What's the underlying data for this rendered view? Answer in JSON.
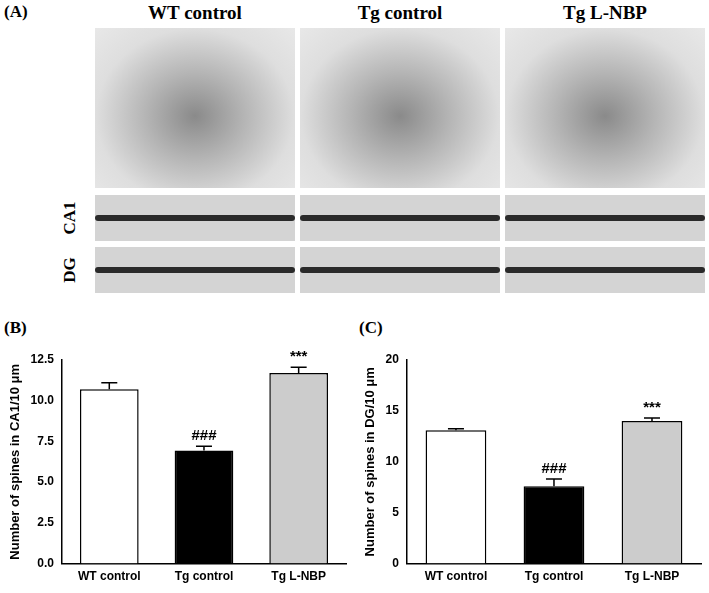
{
  "figure": {
    "panel_label": "(A)",
    "columns": [
      "WT control",
      "Tg control",
      "Tg L-NBP"
    ],
    "rows": [
      "CA1",
      "DG"
    ]
  },
  "chart_data": [
    {
      "type": "bar",
      "panel_label": "(B)",
      "y_label": "Number of spines in CA1/10 μm",
      "categories": [
        "WT control",
        "Tg control",
        "Tg L-NBP"
      ],
      "values": [
        10.7,
        6.95,
        11.7
      ],
      "errors": [
        0.4,
        0.25,
        0.35
      ],
      "annotations": [
        null,
        "###",
        "***"
      ],
      "colors": [
        "#ffffff",
        "#000000",
        "#cccccc"
      ],
      "ylim": [
        0,
        12.5
      ],
      "yticks": [
        {
          "value": 0,
          "label": "0.0"
        },
        2.5,
        {
          "value": 5,
          "label": "5.0"
        },
        7.5,
        {
          "value": 10,
          "label": "10.0"
        },
        12.5
      ],
      "grid": false
    },
    {
      "type": "bar",
      "panel_label": "(C)",
      "y_label": "Number of spines in DG/10 μm",
      "categories": [
        "WT control",
        "Tg control",
        "Tg L-NBP"
      ],
      "values": [
        13.1,
        7.6,
        14.0
      ],
      "errors": [
        0.15,
        0.7,
        0.3
      ],
      "annotations": [
        null,
        "###",
        "***"
      ],
      "colors": [
        "#ffffff",
        "#000000",
        "#cccccc"
      ],
      "ylim": [
        0,
        20
      ],
      "yticks": [
        0,
        5,
        10,
        15,
        20
      ],
      "grid": false
    }
  ]
}
